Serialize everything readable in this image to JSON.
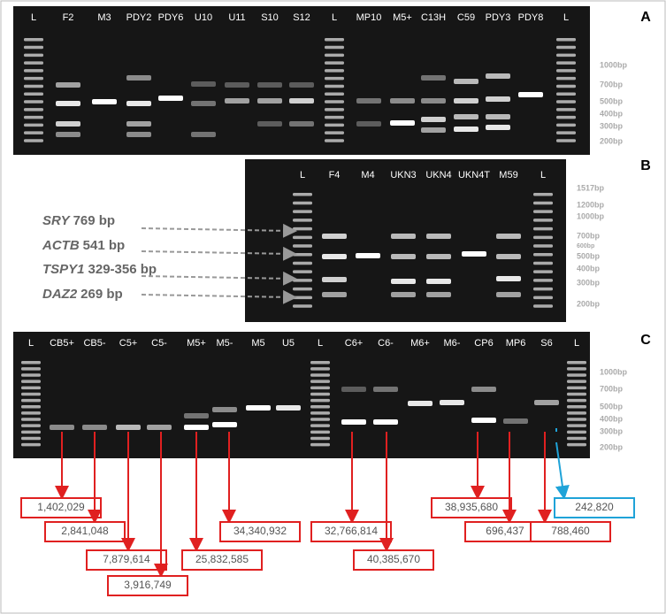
{
  "panels": [
    {
      "letter": "A",
      "lanes": [
        "L",
        "F2",
        "M3",
        "PDY2",
        "PDY6",
        "U10",
        "U11",
        "S10",
        "S12",
        "L",
        "MP10",
        "M5+",
        "C13H",
        "C59",
        "PDY3",
        "PDY8",
        "L"
      ],
      "markers": [
        "1000bp",
        "700bp",
        "500bp",
        "400bp",
        "300bp",
        "200bp"
      ]
    },
    {
      "letter": "B",
      "lanes": [
        "L",
        "F4",
        "M4",
        "UKN3",
        "UKN4",
        "UKN4T",
        "M59",
        "L"
      ],
      "markers": [
        "1517bp",
        "1200bp",
        "1000bp",
        "700bp",
        "600bp",
        "500bp",
        "400bp",
        "300bp",
        "200bp"
      ]
    },
    {
      "letter": "C",
      "lanes": [
        "L",
        "CB5+",
        "CB5-",
        "C5+",
        "C5-",
        "M5+",
        "M5-",
        "M5",
        "U5",
        "L",
        "C6+",
        "C6-",
        "M6+",
        "M6-",
        "CP6",
        "MP6",
        "S6",
        "L"
      ],
      "markers": [
        "1000bp",
        "700bp",
        "500bp",
        "400bp",
        "300bp",
        "200bp"
      ]
    }
  ],
  "gene_labels": [
    {
      "gene": "SRY",
      "size": "769 bp"
    },
    {
      "gene": "ACTB",
      "size": "541 bp"
    },
    {
      "gene": "TSPY1",
      "size": "329-356 bp"
    },
    {
      "gene": "DAZ2",
      "size": "269 bp"
    }
  ],
  "counts": [
    "1,402,029",
    "2,841,048",
    "7,879,614",
    "3,916,749",
    "25,832,585",
    "34,340,932",
    "32,766,814",
    "40,385,670",
    "38,935,680",
    "696,437",
    "788,460",
    "242,820"
  ]
}
